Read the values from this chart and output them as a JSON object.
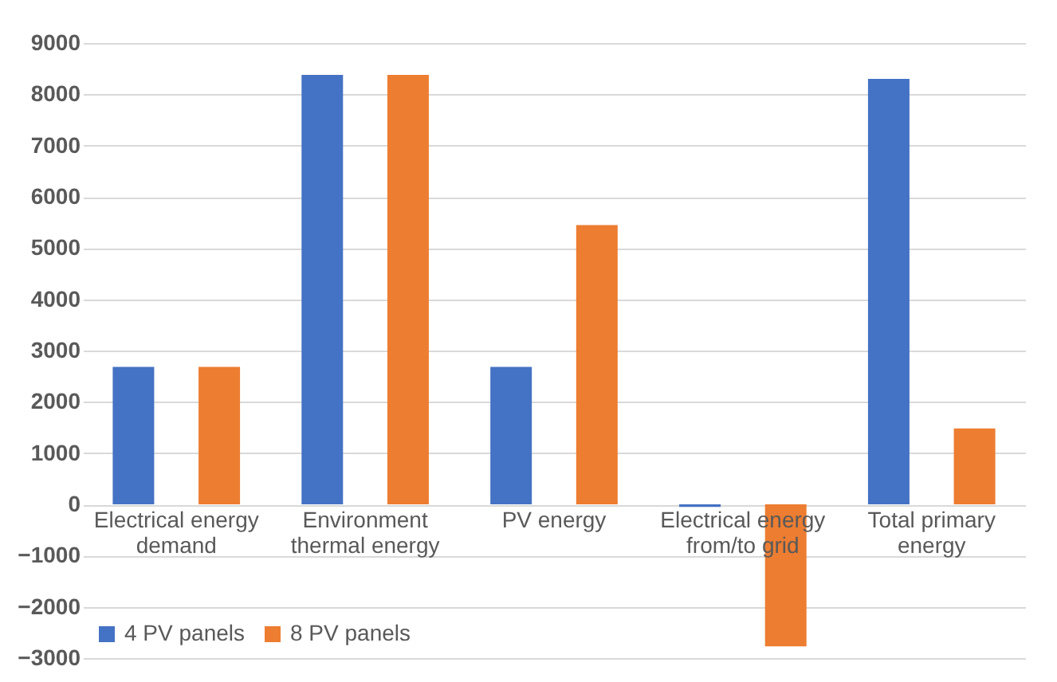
{
  "chart_data": {
    "type": "bar",
    "categories": [
      "Electrical energy demand",
      "Environment thermal energy",
      "PV energy",
      "Electrical energy from/to grid",
      "Total primary energy"
    ],
    "series": [
      {
        "name": "4 PV panels",
        "color": "#4472c4",
        "values": [
          2680,
          8380,
          2680,
          -50,
          8300
        ]
      },
      {
        "name": "8 PV panels",
        "color": "#ed7d31",
        "values": [
          2680,
          8380,
          5450,
          -2770,
          1480
        ]
      }
    ],
    "ylim": [
      -3000,
      9000
    ],
    "yticks": [
      -3000,
      -2000,
      -1000,
      0,
      1000,
      2000,
      3000,
      4000,
      5000,
      6000,
      7000,
      8000,
      9000
    ],
    "grid": "y",
    "legend": "bottom left"
  }
}
